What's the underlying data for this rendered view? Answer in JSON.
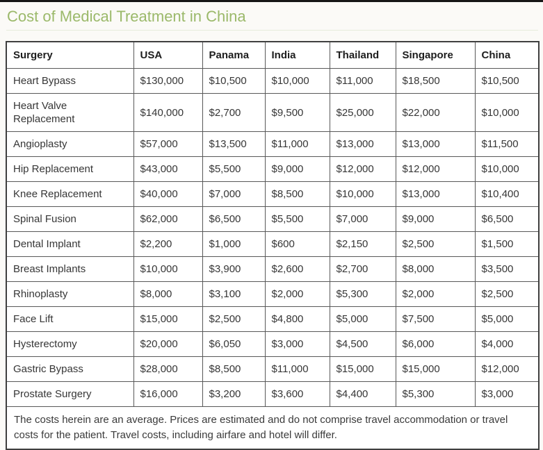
{
  "page": {
    "title": "Cost of Medical Treatment in China",
    "title_color": "#9bb96a",
    "border_color": "#3f3f3f",
    "text_color": "#363636"
  },
  "table": {
    "columns": [
      "Surgery",
      "USA",
      "Panama",
      "India",
      "Thailand",
      "Singapore",
      "China"
    ],
    "rows": [
      [
        "Heart Bypass",
        "$130,000",
        "$10,500",
        "$10,000",
        "$11,000",
        "$18,500",
        "$10,500"
      ],
      [
        "Heart Valve Replacement",
        "$140,000",
        "$2,700",
        "$9,500",
        "$25,000",
        "$22,000",
        "$10,000"
      ],
      [
        "Angioplasty",
        "$57,000",
        "$13,500",
        "$11,000",
        "$13,000",
        "$13,000",
        "$11,500"
      ],
      [
        "Hip Replacement",
        "$43,000",
        "$5,500",
        "$9,000",
        "$12,000",
        "$12,000",
        "$10,000"
      ],
      [
        "Knee Replacement",
        "$40,000",
        "$7,000",
        "$8,500",
        "$10,000",
        "$13,000",
        "$10,400"
      ],
      [
        "Spinal Fusion",
        "$62,000",
        "$6,500",
        "$5,500",
        "$7,000",
        "$9,000",
        "$6,500"
      ],
      [
        "Dental Implant",
        "$2,200",
        "$1,000",
        "$600",
        "$2,150",
        "$2,500",
        "$1,500"
      ],
      [
        "Breast Implants",
        "$10,000",
        "$3,900",
        "$2,600",
        "$2,700",
        "$8,000",
        "$3,500"
      ],
      [
        "Rhinoplasty",
        "$8,000",
        "$3,100",
        "$2,000",
        "$5,300",
        "$2,000",
        "$2,500"
      ],
      [
        "Face Lift",
        "$15,000",
        "$2,500",
        "$4,800",
        "$5,000",
        "$7,500",
        "$5,000"
      ],
      [
        "Hysterectomy",
        "$20,000",
        "$6,050",
        "$3,000",
        "$4,500",
        "$6,000",
        "$4,000"
      ],
      [
        "Gastric Bypass",
        "$28,000",
        "$8,500",
        "$11,000",
        "$15,000",
        "$15,000",
        "$12,000"
      ],
      [
        "Prostate Surgery",
        "$16,000",
        "$3,200",
        "$3,600",
        "$4,400",
        "$5,300",
        "$3,000"
      ]
    ],
    "footnote": "The costs herein are an average. Prices are estimated and do not comprise travel accommodation or travel costs for the patient. Travel costs, including airfare and hotel will differ."
  },
  "chart_data": {
    "type": "table",
    "title": "Cost of Medical Treatment in China",
    "columns": [
      "Surgery",
      "USA",
      "Panama",
      "India",
      "Thailand",
      "Singapore",
      "China"
    ],
    "categories": [
      "Heart Bypass",
      "Heart Valve Replacement",
      "Angioplasty",
      "Hip Replacement",
      "Knee Replacement",
      "Spinal Fusion",
      "Dental Implant",
      "Breast Implants",
      "Rhinoplasty",
      "Face Lift",
      "Hysterectomy",
      "Gastric Bypass",
      "Prostate Surgery"
    ],
    "series": [
      {
        "name": "USA",
        "values": [
          130000,
          140000,
          57000,
          43000,
          40000,
          62000,
          2200,
          10000,
          8000,
          15000,
          20000,
          28000,
          16000
        ]
      },
      {
        "name": "Panama",
        "values": [
          10500,
          2700,
          13500,
          5500,
          7000,
          6500,
          1000,
          3900,
          3100,
          2500,
          6050,
          8500,
          3200
        ]
      },
      {
        "name": "India",
        "values": [
          10000,
          9500,
          11000,
          9000,
          8500,
          5500,
          600,
          2600,
          2000,
          4800,
          3000,
          11000,
          3600
        ]
      },
      {
        "name": "Thailand",
        "values": [
          11000,
          25000,
          13000,
          12000,
          10000,
          7000,
          2150,
          2700,
          5300,
          5000,
          4500,
          15000,
          4400
        ]
      },
      {
        "name": "Singapore",
        "values": [
          18500,
          22000,
          13000,
          12000,
          13000,
          9000,
          2500,
          8000,
          2000,
          7500,
          6000,
          15000,
          5300
        ]
      },
      {
        "name": "China",
        "values": [
          10500,
          10000,
          11500,
          10000,
          10400,
          6500,
          1500,
          3500,
          2500,
          5000,
          4000,
          12000,
          3000
        ]
      }
    ],
    "unit": "USD",
    "footnote": "The costs herein are an average. Prices are estimated and do not comprise travel accommodation or travel costs for the patient. Travel costs, including airfare and hotel will differ."
  }
}
